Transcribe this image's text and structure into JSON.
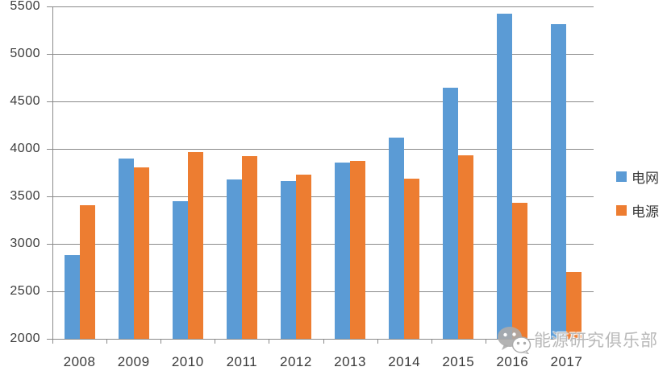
{
  "chart_data": {
    "type": "bar",
    "title": "",
    "categories": [
      "2008",
      "2009",
      "2010",
      "2011",
      "2012",
      "2013",
      "2014",
      "2015",
      "2016",
      "2017"
    ],
    "series": [
      {
        "name": "电网",
        "key": "grid",
        "color": "#5B9BD5",
        "values": [
          2885,
          3898,
          3448,
          3682,
          3661,
          3856,
          4119,
          4640,
          5426,
          5315
        ]
      },
      {
        "name": "电源",
        "key": "power",
        "color": "#ED7D31",
        "values": [
          3403,
          3803,
          3969,
          3927,
          3732,
          3872,
          3686,
          3936,
          3429,
          2700
        ]
      }
    ],
    "ylim": [
      2000,
      5500
    ],
    "yticks": [
      2000,
      2500,
      3000,
      3500,
      4000,
      4500,
      5000,
      5500
    ],
    "grid": true,
    "legend_position": "right",
    "colors": {
      "gridline": "#8A8A8A",
      "axis": "#8A8A8A",
      "axis_text": "#3B3B3B"
    }
  },
  "watermark": {
    "text": "能源研究俱乐部",
    "icon": "wechat-icon"
  }
}
